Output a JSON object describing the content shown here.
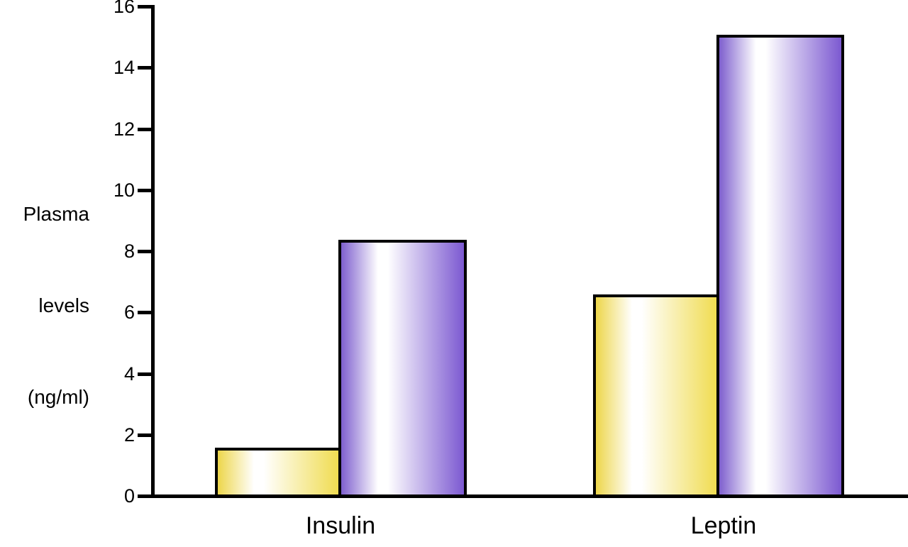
{
  "figure": {
    "background": "#ffffff",
    "text_color": "#000000",
    "axis_color": "#000000"
  },
  "chart_data": {
    "type": "bar",
    "title": "",
    "xlabel": "",
    "ylabel": "Plasma levels (ng/ml)",
    "ylabel_lines": [
      "Plasma",
      "levels",
      "(ng/ml)"
    ],
    "categories": [
      "Insulin",
      "Leptin"
    ],
    "series": [
      {
        "name": "yellow-series",
        "values": [
          1.5,
          6.5
        ],
        "color_edge_left": "#edd64a",
        "color_highlight": "#ffffff",
        "color_edge_right": "#f0dc51",
        "outline": "#000000"
      },
      {
        "name": "purple-series",
        "values": [
          8.3,
          15.0
        ],
        "color_edge_left": "#7e5fce",
        "color_highlight": "#ffffff",
        "color_edge_right": "#7c59d1",
        "outline": "#000000"
      }
    ],
    "ylim": [
      0,
      16
    ],
    "yticks": [
      0,
      2,
      4,
      6,
      8,
      10,
      12,
      14,
      16
    ],
    "grid": false,
    "legend": "none"
  }
}
